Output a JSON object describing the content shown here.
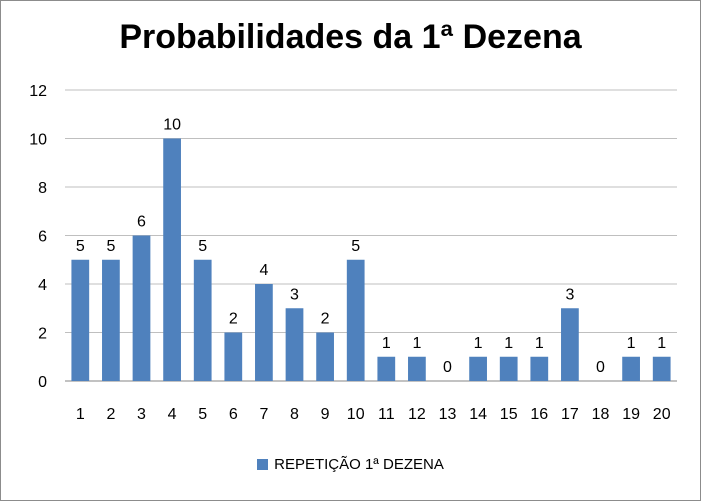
{
  "chart_data": {
    "type": "bar",
    "title": "Probabilidades da 1ª Dezena",
    "categories": [
      "1",
      "2",
      "3",
      "4",
      "5",
      "6",
      "7",
      "8",
      "9",
      "10",
      "11",
      "12",
      "13",
      "14",
      "15",
      "16",
      "17",
      "18",
      "19",
      "20"
    ],
    "series": [
      {
        "name": "REPETIÇÃO 1ª DEZENA",
        "values": [
          5,
          5,
          6,
          10,
          5,
          2,
          4,
          3,
          2,
          5,
          1,
          1,
          0,
          1,
          1,
          1,
          3,
          0,
          1,
          1
        ]
      }
    ],
    "yticks": [
      "0",
      "2",
      "4",
      "6",
      "8",
      "10",
      "12"
    ],
    "ylim": [
      0,
      12
    ],
    "grid": true,
    "legend_position": "bottom",
    "data_labels": true,
    "bar_color": "#4f81bd",
    "grid_color": "#bfbfbf"
  }
}
